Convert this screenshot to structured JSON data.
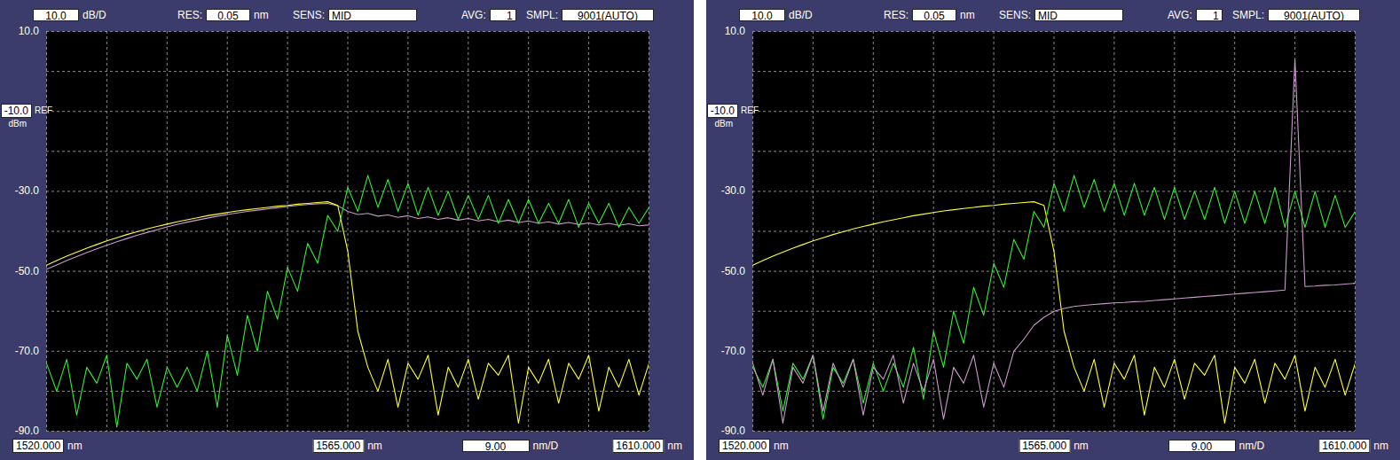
{
  "chart_data": [
    {
      "type": "line",
      "grid": true,
      "y_per_div": {
        "value": 10,
        "label": "10.0",
        "unit": "dB/D"
      },
      "x_per_div": {
        "value": 9,
        "label": "9.00",
        "unit": "nm/D"
      },
      "settings_bar": [
        {
          "label": "RES:",
          "value": "0.05",
          "unit": "nm"
        },
        {
          "label": "SENS:",
          "value": "MID"
        },
        {
          "label": "AVG:",
          "value": "1"
        },
        {
          "label": "SMPL:",
          "value": "9001(AUTO)"
        }
      ],
      "xlim": [
        1520,
        1610
      ],
      "ylim": [
        -90,
        10
      ],
      "xticks": [
        {
          "value": 1520,
          "label": "1520.000"
        },
        {
          "value": 1565,
          "label": "1565.000"
        },
        {
          "value": 1610,
          "label": "1610.000"
        }
      ],
      "yticks": [
        {
          "value": 10,
          "label": "10.0"
        },
        {
          "value": -10,
          "label": "-10.0"
        },
        {
          "value": -30,
          "label": "-30.0"
        },
        {
          "value": -50,
          "label": "-50.0"
        },
        {
          "value": -70,
          "label": "-70.0"
        },
        {
          "value": -90,
          "label": "-90.0"
        }
      ],
      "x_unit": "nm",
      "y_unit": "dBm",
      "ref": {
        "value": -10,
        "label": "REF"
      },
      "x": [
        1520,
        1521.5,
        1523,
        1524.5,
        1526,
        1527.5,
        1529,
        1530.5,
        1532,
        1533.5,
        1535,
        1536.5,
        1538,
        1539.5,
        1541,
        1542.5,
        1544,
        1545.5,
        1547,
        1548.5,
        1550,
        1551.5,
        1553,
        1554.5,
        1556,
        1557.5,
        1559,
        1560.5,
        1562,
        1563.5,
        1565,
        1566.5,
        1568,
        1569.5,
        1571,
        1572.5,
        1574,
        1575.5,
        1577,
        1578.5,
        1580,
        1581.5,
        1583,
        1584.5,
        1586,
        1587.5,
        1589,
        1590.5,
        1592,
        1593.5,
        1595,
        1596.5,
        1598,
        1599.5,
        1601,
        1602.5,
        1604,
        1605.5,
        1607,
        1608.5,
        1610
      ],
      "series": [
        {
          "color": "#cc99cc",
          "values": [
            -49.5,
            -48.4,
            -47.3,
            -46.3,
            -45.3,
            -44.4,
            -43.5,
            -42.6,
            -41.8,
            -41.0,
            -40.3,
            -39.6,
            -38.9,
            -38.3,
            -37.7,
            -37.2,
            -36.7,
            -36.2,
            -35.8,
            -35.4,
            -35.0,
            -34.7,
            -34.4,
            -34.1,
            -33.8,
            -33.5,
            -33.3,
            -33.1,
            -33.0,
            -33.6,
            -35.0,
            -35.8,
            -35.5,
            -36.2,
            -35.9,
            -36.5,
            -36.1,
            -36.8,
            -36.4,
            -37.0,
            -36.6,
            -37.2,
            -36.8,
            -37.4,
            -37.0,
            -37.6,
            -37.2,
            -37.8,
            -37.4,
            -38.0,
            -37.6,
            -38.2,
            -37.8,
            -38.3,
            -37.9,
            -38.4,
            -38.0,
            -38.5,
            -38.1,
            -38.6,
            -38.4
          ]
        },
        {
          "color": "#ffff33",
          "values": [
            -48.5,
            -47.3,
            -46.2,
            -45.2,
            -44.2,
            -43.3,
            -42.4,
            -41.6,
            -40.8,
            -40.1,
            -39.4,
            -38.8,
            -38.2,
            -37.6,
            -37.1,
            -36.6,
            -36.1,
            -35.7,
            -35.3,
            -34.9,
            -34.6,
            -34.3,
            -34.0,
            -33.7,
            -33.5,
            -33.2,
            -33.0,
            -32.8,
            -32.6,
            -33.5,
            -45,
            -65,
            -74,
            -80,
            -72,
            -84,
            -73,
            -77,
            -71,
            -86,
            -74,
            -79,
            -72,
            -82,
            -73,
            -76,
            -71,
            -88,
            -74,
            -78,
            -72,
            -83,
            -73,
            -77,
            -71,
            -85,
            -74,
            -79,
            -72,
            -81,
            -73
          ]
        },
        {
          "color": "#33ee33",
          "values": [
            -73,
            -80,
            -72,
            -86,
            -74,
            -78,
            -71,
            -89,
            -73,
            -77,
            -72,
            -84,
            -74,
            -79,
            -74,
            -80,
            -70,
            -84,
            -66,
            -76,
            -61,
            -70,
            -55,
            -62,
            -49,
            -55,
            -43,
            -48,
            -36,
            -40,
            -29,
            -35,
            -26,
            -34,
            -27,
            -35,
            -28,
            -36,
            -29,
            -36,
            -30,
            -37,
            -31,
            -37,
            -31,
            -38,
            -32,
            -38,
            -32,
            -38,
            -33,
            -38,
            -32,
            -39,
            -33,
            -38,
            -33,
            -39,
            -34,
            -38,
            -34
          ]
        }
      ]
    },
    {
      "type": "line",
      "grid": true,
      "y_per_div": {
        "value": 10,
        "label": "10.0",
        "unit": "dB/D"
      },
      "x_per_div": {
        "value": 9,
        "label": "9.00",
        "unit": "nm/D"
      },
      "settings_bar": [
        {
          "label": "RES:",
          "value": "0.05",
          "unit": "nm"
        },
        {
          "label": "SENS:",
          "value": "MID"
        },
        {
          "label": "AVG:",
          "value": "1"
        },
        {
          "label": "SMPL:",
          "value": "9001(AUTO)"
        }
      ],
      "xlim": [
        1520,
        1610
      ],
      "ylim": [
        -90,
        10
      ],
      "xticks": [
        {
          "value": 1520,
          "label": "1520.000"
        },
        {
          "value": 1565,
          "label": "1565.000"
        },
        {
          "value": 1610,
          "label": "1610.000"
        }
      ],
      "yticks": [
        {
          "value": 10,
          "label": "10.0"
        },
        {
          "value": -10,
          "label": "-10.0"
        },
        {
          "value": -30,
          "label": "-30.0"
        },
        {
          "value": -50,
          "label": "-50.0"
        },
        {
          "value": -70,
          "label": "-70.0"
        },
        {
          "value": -90,
          "label": "-90.0"
        }
      ],
      "x_unit": "nm",
      "y_unit": "dBm",
      "ref": {
        "value": -10,
        "label": "REF"
      },
      "x": [
        1520,
        1521.5,
        1523,
        1524.5,
        1526,
        1527.5,
        1529,
        1530.5,
        1532,
        1533.5,
        1535,
        1536.5,
        1538,
        1539.5,
        1541,
        1542.5,
        1544,
        1545.5,
        1547,
        1548.5,
        1550,
        1551.5,
        1553,
        1554.5,
        1556,
        1557.5,
        1559,
        1560.5,
        1562,
        1563.5,
        1565,
        1566.5,
        1568,
        1569.5,
        1571,
        1572.5,
        1574,
        1575.5,
        1577,
        1578.5,
        1580,
        1581.5,
        1583,
        1584.5,
        1586,
        1587.5,
        1589,
        1590.5,
        1592,
        1593.5,
        1595,
        1596.5,
        1598,
        1599.5,
        1601,
        1602.5,
        1604,
        1605.5,
        1607,
        1608.5,
        1610
      ],
      "series": [
        {
          "color": "#ffff33",
          "values": [
            -48.5,
            -47.3,
            -46.2,
            -45.2,
            -44.2,
            -43.3,
            -42.4,
            -41.6,
            -40.8,
            -40.1,
            -39.4,
            -38.8,
            -38.2,
            -37.6,
            -37.1,
            -36.6,
            -36.1,
            -35.7,
            -35.3,
            -34.9,
            -34.6,
            -34.3,
            -34.0,
            -33.7,
            -33.5,
            -33.2,
            -33.0,
            -32.8,
            -32.6,
            -33.5,
            -45,
            -65,
            -74,
            -80,
            -72,
            -84,
            -73,
            -77,
            -71,
            -86,
            -74,
            -79,
            -72,
            -82,
            -73,
            -76,
            -71,
            -88,
            -74,
            -78,
            -72,
            -83,
            -73,
            -77,
            -71,
            -85,
            -74,
            -79,
            -72,
            -81,
            -73
          ]
        },
        {
          "color": "#33ee33",
          "values": [
            -74,
            -79,
            -72,
            -85,
            -73,
            -77,
            -71,
            -87,
            -74,
            -78,
            -72,
            -83,
            -73,
            -80,
            -73,
            -79,
            -69,
            -82,
            -65,
            -74,
            -60,
            -68,
            -54,
            -61,
            -48,
            -54,
            -42,
            -47,
            -35,
            -39,
            -28,
            -35,
            -26,
            -34,
            -27,
            -35,
            -28,
            -36,
            -28,
            -36,
            -29,
            -37,
            -29,
            -37,
            -30,
            -37,
            -29,
            -38,
            -30,
            -38,
            -30,
            -38,
            -29,
            -39,
            -30,
            -39,
            -30,
            -39,
            -31,
            -39,
            -35
          ]
        },
        {
          "color": "#cc99cc",
          "values": [
            -73,
            -81,
            -72,
            -88,
            -74,
            -78,
            -71,
            -85,
            -73,
            -79,
            -72,
            -86,
            -74,
            -77,
            -71,
            -83,
            -73,
            -80,
            -72,
            -87,
            -74,
            -78,
            -71,
            -84,
            -73,
            -79,
            -70,
            -67,
            -63.5,
            -61.5,
            -60,
            -59.3,
            -58.8,
            -58.5,
            -58.3,
            -58.1,
            -57.9,
            -57.8,
            -57.6,
            -57.5,
            -57.3,
            -57.1,
            -56.9,
            -56.7,
            -56.5,
            -56.3,
            -56.1,
            -55.9,
            -55.7,
            -55.5,
            -55.3,
            -55.1,
            -54.9,
            -54.7,
            3,
            -53.8,
            -53.7,
            -53.5,
            -53.4,
            -53.2,
            -53.0
          ]
        }
      ]
    }
  ]
}
